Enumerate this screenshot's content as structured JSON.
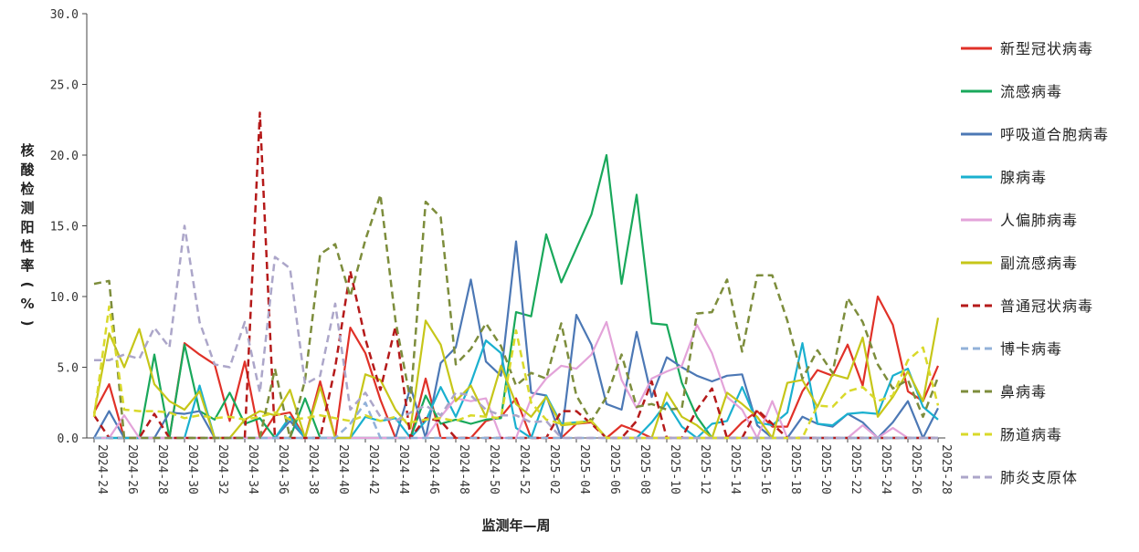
{
  "chart_data": {
    "type": "line",
    "xlabel": "监测年—周",
    "ylabel": "核酸检测阳性率(%)",
    "ylim": [
      0,
      30
    ],
    "yticks": [
      "0.0",
      "5.0",
      "10.0",
      "15.0",
      "20.0",
      "25.0",
      "30.0"
    ],
    "x": [
      "2024-24",
      "2024-25",
      "2024-26",
      "2024-27",
      "2024-28",
      "2024-29",
      "2024-30",
      "2024-31",
      "2024-32",
      "2024-33",
      "2024-34",
      "2024-35",
      "2024-36",
      "2024-37",
      "2024-38",
      "2024-39",
      "2024-40",
      "2024-41",
      "2024-42",
      "2024-43",
      "2024-44",
      "2024-45",
      "2024-46",
      "2024-47",
      "2024-48",
      "2024-49",
      "2024-50",
      "2024-51",
      "2024-52",
      "2025-01",
      "2025-02",
      "2025-03",
      "2025-04",
      "2025-05",
      "2025-06",
      "2025-07",
      "2025-08",
      "2025-09",
      "2025-10",
      "2025-11",
      "2025-12",
      "2025-13",
      "2025-14",
      "2025-15",
      "2025-16",
      "2025-17",
      "2025-18",
      "2025-19",
      "2025-20",
      "2025-21",
      "2025-22",
      "2025-23",
      "2025-24",
      "2025-25",
      "2025-26",
      "2025-27",
      "2025-28"
    ],
    "xticks": [
      "2024-24",
      "2024-26",
      "2024-28",
      "2024-30",
      "2024-32",
      "2024-34",
      "2024-36",
      "2024-38",
      "2024-40",
      "2024-42",
      "2024-44",
      "2024-46",
      "2024-48",
      "2024-50",
      "2024-52",
      "2025-02",
      "2025-04",
      "2025-06",
      "2025-08",
      "2025-10",
      "2025-12",
      "2025-14",
      "2025-16",
      "2025-18",
      "2025-20",
      "2025-22",
      "2025-24",
      "2025-26",
      "2025-28"
    ],
    "legend_position": "right",
    "series": [
      {
        "name": "新型冠状病毒",
        "color": "#e03128",
        "dash": "solid",
        "values": [
          1.8,
          3.8,
          0,
          0,
          0,
          0,
          6.7,
          5.9,
          5.2,
          1.2,
          5.4,
          0.0,
          1.6,
          1.8,
          0.0,
          4.0,
          0.0,
          7.8,
          6.0,
          2.7,
          0.0,
          0.0,
          4.2,
          0.0,
          0.0,
          0.0,
          1.2,
          1.5,
          2.8,
          0.0,
          0.0,
          0.0,
          1.0,
          1.1,
          0.0,
          0.9,
          0.5,
          0.0,
          0.0,
          0.0,
          0.0,
          0.0,
          0.0,
          1.1,
          1.9,
          0.8,
          0.8,
          3.3,
          4.8,
          4.4,
          6.6,
          3.7,
          10.0,
          8.0,
          3.3,
          2.6,
          5.1
        ]
      },
      {
        "name": "流感病毒",
        "color": "#19a85b",
        "dash": "solid",
        "values": [
          0.0,
          0.0,
          0.0,
          0.0,
          5.9,
          0.0,
          6.6,
          1.9,
          1.3,
          3.2,
          1.0,
          1.4,
          0.0,
          0.0,
          2.8,
          0.0,
          0.0,
          0.0,
          0.0,
          0.0,
          0.0,
          0.0,
          3.0,
          1.0,
          1.3,
          1.0,
          1.3,
          1.4,
          8.9,
          8.6,
          14.4,
          11.0,
          13.4,
          15.8,
          20.0,
          10.9,
          17.2,
          8.1,
          8.0,
          3.9,
          1.5,
          0.0,
          0.0,
          0.0,
          0.0,
          0.0,
          0.0,
          0.0,
          0.0,
          0.0,
          0.0,
          0.0,
          0.0,
          0.0,
          0.0,
          0.0,
          0.0
        ]
      },
      {
        "name": "呼吸道合胞病毒",
        "color": "#4c78b5",
        "dash": "solid",
        "values": [
          0.0,
          1.9,
          0.0,
          0.0,
          0.0,
          1.8,
          1.7,
          1.9,
          0.0,
          0.0,
          0.0,
          0.0,
          0.0,
          1.2,
          0.0,
          0.0,
          0.0,
          0.0,
          0.0,
          0.0,
          0.0,
          3.6,
          0.0,
          5.3,
          6.4,
          11.2,
          5.4,
          4.4,
          13.9,
          3.2,
          3.0,
          0.0,
          8.7,
          6.6,
          2.4,
          2.0,
          7.5,
          2.9,
          5.7,
          5.0,
          4.4,
          4.0,
          4.4,
          4.5,
          0.9,
          0.0,
          0.0,
          1.5,
          1.0,
          0.8,
          1.7,
          1.1,
          0.0,
          1.1,
          2.6,
          0.0,
          2.1
        ]
      },
      {
        "name": "腺病毒",
        "color": "#1ab0cf",
        "dash": "solid",
        "values": [
          0.0,
          0.0,
          0.0,
          0.0,
          0.0,
          0.0,
          0.0,
          3.7,
          0.0,
          0.0,
          0.0,
          0.0,
          0.0,
          1.5,
          0.0,
          0.0,
          0.0,
          0.0,
          1.5,
          1.2,
          1.4,
          0.0,
          1.2,
          3.6,
          1.5,
          3.9,
          6.9,
          6.0,
          0.7,
          0.0,
          3.0,
          1.0,
          1.1,
          1.2,
          0.0,
          0.0,
          0.0,
          1.1,
          2.5,
          0.8,
          0.0,
          1.0,
          1.2,
          3.6,
          1.1,
          0.9,
          1.8,
          6.7,
          1.0,
          0.9,
          1.7,
          1.8,
          1.7,
          4.4,
          4.9,
          2.2,
          1.3
        ]
      },
      {
        "name": "人偏肺病毒",
        "color": "#e3a3d9",
        "dash": "solid",
        "values": [
          0.0,
          0.0,
          1.6,
          0.0,
          0.0,
          0.0,
          0.0,
          0.0,
          0.0,
          0.0,
          0.0,
          0.0,
          0.0,
          0.0,
          0.0,
          0.0,
          0.0,
          0.0,
          0.0,
          0.0,
          0.0,
          0.0,
          0.0,
          1.5,
          2.8,
          2.6,
          2.8,
          0.0,
          0.0,
          2.8,
          4.2,
          5.1,
          4.9,
          5.9,
          8.2,
          4.1,
          2.1,
          4.2,
          4.7,
          5.1,
          8.0,
          6.0,
          2.9,
          2.0,
          0.0,
          2.6,
          0.0,
          0.0,
          0.0,
          0.0,
          0.0,
          0.9,
          0.0,
          0.7,
          0.0,
          0.0,
          0.0
        ]
      },
      {
        "name": "副流感病毒",
        "color": "#c6c619",
        "dash": "solid",
        "values": [
          1.7,
          7.4,
          5.0,
          7.7,
          3.8,
          2.6,
          2.0,
          3.3,
          0.0,
          0.0,
          1.3,
          1.9,
          1.6,
          3.4,
          0.0,
          3.6,
          0.0,
          0.0,
          4.5,
          4.1,
          2.0,
          0.7,
          8.3,
          6.6,
          2.6,
          3.7,
          1.5,
          5.1,
          2.4,
          1.5,
          2.9,
          0.9,
          1.0,
          1.2,
          0.0,
          0.0,
          0.0,
          0.0,
          3.2,
          1.5,
          0.9,
          0.0,
          3.2,
          2.4,
          1.5,
          0.0,
          3.9,
          4.1,
          2.2,
          4.5,
          4.2,
          7.1,
          1.5,
          2.9,
          4.7,
          2.6,
          8.5
        ]
      },
      {
        "name": "普通冠状病毒",
        "color": "#b51a1a",
        "dash": "dashed",
        "values": [
          1.6,
          0.0,
          0.0,
          0.0,
          1.7,
          0.0,
          0.0,
          0.0,
          0.0,
          0.0,
          0.0,
          23.0,
          0.0,
          0.0,
          0.0,
          0.0,
          5.0,
          11.8,
          7.0,
          3.4,
          7.9,
          0.0,
          1.4,
          1.2,
          0.0,
          0.0,
          0.0,
          0.0,
          0.0,
          0.0,
          0.0,
          1.9,
          1.9,
          1.0,
          0.0,
          0.0,
          1.2,
          4.0,
          0.0,
          0.0,
          2.0,
          3.5,
          0.0,
          0.0,
          2.0,
          1.0,
          0.0,
          0.0,
          0.0,
          0.0,
          0.0,
          0.0,
          0.0,
          0.0,
          0.0,
          0.0,
          0.0
        ]
      },
      {
        "name": "博卡病毒",
        "color": "#92b1d9",
        "dash": "dashed",
        "values": [
          0.0,
          0.0,
          0.0,
          0.0,
          0.0,
          0.0,
          0.0,
          0.0,
          0.0,
          0.0,
          0.0,
          0.0,
          0.0,
          0.0,
          0.0,
          0.0,
          0.0,
          1.0,
          2.5,
          0.0,
          0.0,
          0.0,
          0.0,
          0.0,
          0.0,
          0.0,
          0.0,
          0.0,
          0.0,
          0.0,
          0.0,
          0.0,
          0.0,
          0.0,
          0.0,
          0.0,
          0.0,
          0.0,
          0.0,
          0.0,
          0.0,
          0.0,
          0.0,
          0.0,
          0.0,
          0.0,
          0.0,
          0.0,
          0.0,
          0.0,
          0.0,
          0.0,
          0.0,
          0.0,
          0.0,
          0.0,
          0.0
        ]
      },
      {
        "name": "鼻病毒",
        "color": "#7d8d3c",
        "dash": "dashed",
        "values": [
          10.9,
          11.1,
          0.0,
          0.0,
          0.0,
          0.0,
          0.0,
          0.0,
          0.0,
          0.0,
          0.0,
          0.0,
          4.9,
          0.0,
          4.1,
          13.0,
          13.7,
          10.0,
          14.0,
          17.2,
          8.3,
          2.6,
          16.7,
          15.6,
          5.2,
          6.3,
          8.1,
          6.5,
          3.7,
          4.6,
          4.2,
          8.1,
          3.0,
          1.2,
          2.9,
          5.9,
          2.2,
          2.4,
          2.0,
          2.1,
          8.8,
          8.9,
          11.2,
          6.1,
          11.5,
          11.5,
          8.3,
          4.2,
          6.2,
          4.6,
          9.9,
          8.2,
          5.2,
          3.5,
          4.1,
          1.5,
          4.3
        ]
      },
      {
        "name": "肠道病毒",
        "color": "#d9d92a",
        "dash": "dashed",
        "values": [
          1.5,
          9.3,
          2.0,
          1.9,
          1.9,
          1.8,
          1.4,
          1.6,
          1.4,
          1.5,
          1.3,
          1.5,
          1.8,
          1.3,
          1.4,
          1.6,
          1.4,
          1.2,
          1.6,
          1.2,
          1.5,
          1.1,
          1.3,
          1.4,
          1.2,
          1.6,
          1.5,
          1.4,
          7.6,
          2.5,
          1.3,
          1.0,
          1.1,
          1.2,
          0.0,
          0.0,
          0.0,
          0.0,
          0.0,
          0.0,
          0.0,
          0.0,
          0.0,
          0.0,
          0.0,
          0.0,
          0.0,
          0.0,
          2.3,
          2.2,
          3.3,
          3.6,
          2.6,
          3.0,
          5.5,
          6.4,
          2.3
        ]
      },
      {
        "name": "肺炎支原体",
        "color": "#aca6c9",
        "dash": "dashed",
        "values": [
          5.5,
          5.5,
          5.9,
          5.6,
          7.8,
          6.4,
          15.0,
          8.2,
          5.2,
          5.0,
          8.2,
          3.2,
          12.8,
          12.0,
          3.8,
          4.4,
          9.5,
          2.0,
          3.2,
          1.5,
          1.2,
          1.8,
          2.3,
          1.6,
          3.2,
          3.0,
          2.0,
          1.6,
          1.6,
          1.1,
          1.2,
          0.0,
          0.0,
          0.0,
          0.0,
          0.0,
          0.0,
          0.0,
          0.0,
          0.0,
          0.0,
          0.0,
          0.0,
          0.0,
          0.0,
          0.0,
          0.0,
          0.0,
          0.0,
          0.0,
          0.0,
          0.0,
          0.0,
          0.0,
          0.0,
          0.0,
          0.0
        ]
      }
    ]
  }
}
